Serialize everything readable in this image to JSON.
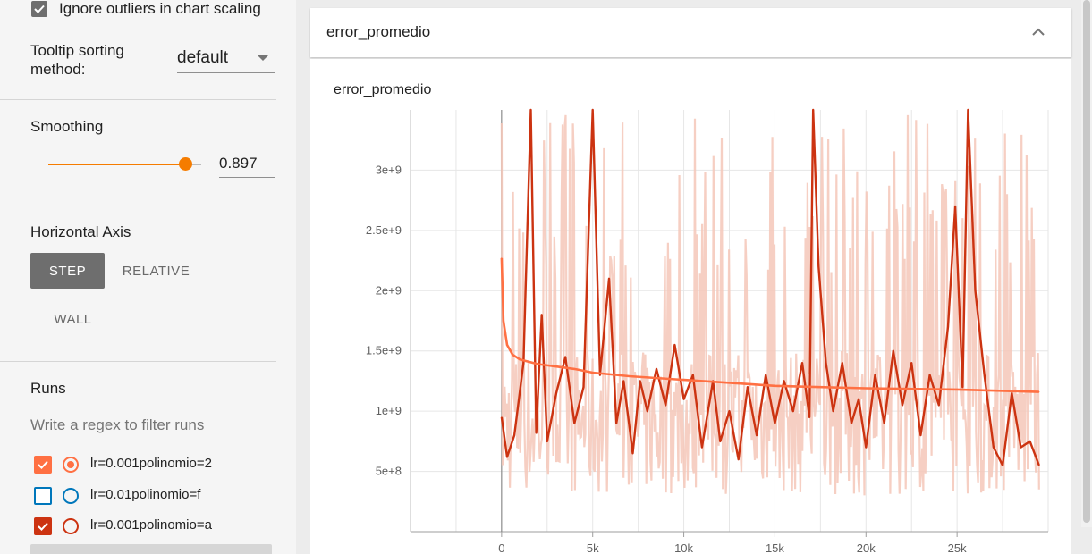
{
  "sidebar": {
    "ignore_outliers_label": "Ignore outliers in chart scaling",
    "ignore_outliers_checked": true,
    "tooltip_sorting_label_line1": "Tooltip sorting",
    "tooltip_sorting_label_line2": "method:",
    "tooltip_sorting_value": "default",
    "smoothing_label": "Smoothing",
    "smoothing_value": "0.897",
    "smoothing_fraction": 0.897,
    "horizontal_axis_label": "Horizontal Axis",
    "axis_buttons": [
      "STEP",
      "RELATIVE",
      "WALL"
    ],
    "axis_selected": "STEP",
    "runs_label": "Runs",
    "runs_filter_placeholder": "Write a regex to filter runs",
    "runs": [
      {
        "name": "lr=0.001polinomio=2",
        "checked": true,
        "radio_selected": true,
        "color": "#ff7043"
      },
      {
        "name": "lr=0.01polinomio=f",
        "checked": false,
        "radio_selected": false,
        "color": "#0077bb"
      },
      {
        "name": "lr=0.001polinomio=a",
        "checked": true,
        "radio_selected": false,
        "color": "#cc3311"
      }
    ]
  },
  "main": {
    "card_title": "error_promedio",
    "chart_title": "error_promedio"
  },
  "chart_data": {
    "type": "line",
    "title": "error_promedio",
    "xlabel": "",
    "ylabel": "",
    "x_ticks": [
      "0",
      "5k",
      "10k",
      "15k",
      "20k",
      "25k"
    ],
    "y_ticks": [
      "5e+8",
      "1e+9",
      "1.5e+9",
      "2e+9",
      "2.5e+9",
      "3e+9"
    ],
    "xlim": [
      -5000,
      30000
    ],
    "ylim": [
      0,
      3500000000
    ],
    "grid": true,
    "series": [
      {
        "name": "lr=0.001polinomio=2",
        "color": "#ff7043",
        "x": [
          0,
          100,
          300,
          600,
          1000,
          2000,
          3000,
          4000,
          5000,
          7000,
          10000,
          13000,
          15000,
          20000,
          25000,
          29500
        ],
        "values": [
          2270000000,
          1750000000,
          1550000000,
          1470000000,
          1430000000,
          1390000000,
          1370000000,
          1350000000,
          1320000000,
          1290000000,
          1260000000,
          1230000000,
          1210000000,
          1190000000,
          1180000000,
          1160000000
        ]
      },
      {
        "name": "lr=0.001polinomio=a",
        "color": "#cc3311",
        "x": [
          0,
          300,
          700,
          1200,
          1600,
          1900,
          2200,
          2500,
          3000,
          3500,
          4000,
          4500,
          5000,
          5400,
          5900,
          6300,
          6700,
          7200,
          7600,
          8000,
          8500,
          9000,
          9500,
          10000,
          10500,
          11000,
          11600,
          12000,
          12500,
          13000,
          13500,
          14000,
          14500,
          15000,
          15500,
          16000,
          16500,
          16900,
          17100,
          17400,
          17800,
          18200,
          18700,
          19200,
          19600,
          20000,
          20500,
          21000,
          21500,
          22000,
          22500,
          23000,
          23500,
          24000,
          24500,
          24900,
          25300,
          25600,
          26000,
          26500,
          27000,
          27500,
          28000,
          28500,
          29000,
          29500
        ],
        "values": [
          950000000,
          620000000,
          800000000,
          1400000000,
          3500000000,
          820000000,
          1800000000,
          750000000,
          1150000000,
          1450000000,
          900000000,
          1200000000,
          3500000000,
          1300000000,
          2100000000,
          900000000,
          1250000000,
          650000000,
          1250000000,
          1000000000,
          1350000000,
          1050000000,
          1550000000,
          1100000000,
          1300000000,
          700000000,
          1250000000,
          750000000,
          1000000000,
          600000000,
          1200000000,
          800000000,
          1300000000,
          900000000,
          1250000000,
          1000000000,
          1400000000,
          950000000,
          3500000000,
          2200000000,
          1400000000,
          1000000000,
          1400000000,
          900000000,
          1100000000,
          700000000,
          1300000000,
          900000000,
          1500000000,
          1050000000,
          1400000000,
          800000000,
          1300000000,
          1050000000,
          1700000000,
          2700000000,
          1200000000,
          3500000000,
          2000000000,
          1300000000,
          700000000,
          550000000,
          1150000000,
          700000000,
          750000000,
          550000000
        ]
      },
      {
        "name": "lr=0.001polinomio=a (raw)",
        "color": "#f4c7b8",
        "x": [
          0,
          30000
        ],
        "values": [
          300000000,
          3500000000
        ]
      }
    ]
  }
}
